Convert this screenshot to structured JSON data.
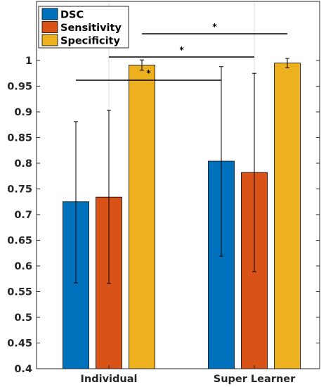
{
  "chart_data": {
    "type": "bar",
    "title": "",
    "xlabel": "",
    "ylabel": "",
    "ylim": [
      0.4,
      1.0
    ],
    "yticks": [
      0.4,
      0.45,
      0.5,
      0.55,
      0.6,
      0.65,
      0.7,
      0.75,
      0.8,
      0.85,
      0.9,
      0.95,
      1
    ],
    "ytick_labels": [
      "0.4",
      "0.45",
      "0.5",
      "0.55",
      "0.6",
      "0.65",
      "0.7",
      "0.75",
      "0.8",
      "0.85",
      "0.9",
      "0.95",
      "1"
    ],
    "categories": [
      "Individual",
      "Super Learner"
    ],
    "series": [
      {
        "name": "DSC",
        "color": "#0072BD",
        "values": [
          0.725,
          0.804
        ],
        "err_low": [
          0.567,
          0.619
        ],
        "err_high": [
          0.881,
          0.988
        ]
      },
      {
        "name": "Sensitivity",
        "color": "#D95319",
        "values": [
          0.734,
          0.782
        ],
        "err_low": [
          0.566,
          0.589
        ],
        "err_high": [
          0.903,
          0.975
        ]
      },
      {
        "name": "Specificity",
        "color": "#EDB120",
        "values": [
          0.991,
          0.995
        ],
        "err_low": [
          0.981,
          0.986
        ],
        "err_high": [
          1.001,
          1.004
        ]
      }
    ],
    "significance": [
      {
        "from": {
          "category": 0,
          "series": 0
        },
        "to": {
          "category": 1,
          "series": 0
        },
        "label": "*"
      },
      {
        "from": {
          "category": 0,
          "series": 1
        },
        "to": {
          "category": 1,
          "series": 1
        },
        "label": "*"
      },
      {
        "from": {
          "category": 0,
          "series": 2
        },
        "to": {
          "category": 1,
          "series": 2
        },
        "label": "*"
      }
    ],
    "legend": {
      "placement": "top-left",
      "entries": [
        "DSC",
        "Sensitivity",
        "Specificity"
      ]
    },
    "grid": {
      "x": true,
      "y": false
    }
  }
}
